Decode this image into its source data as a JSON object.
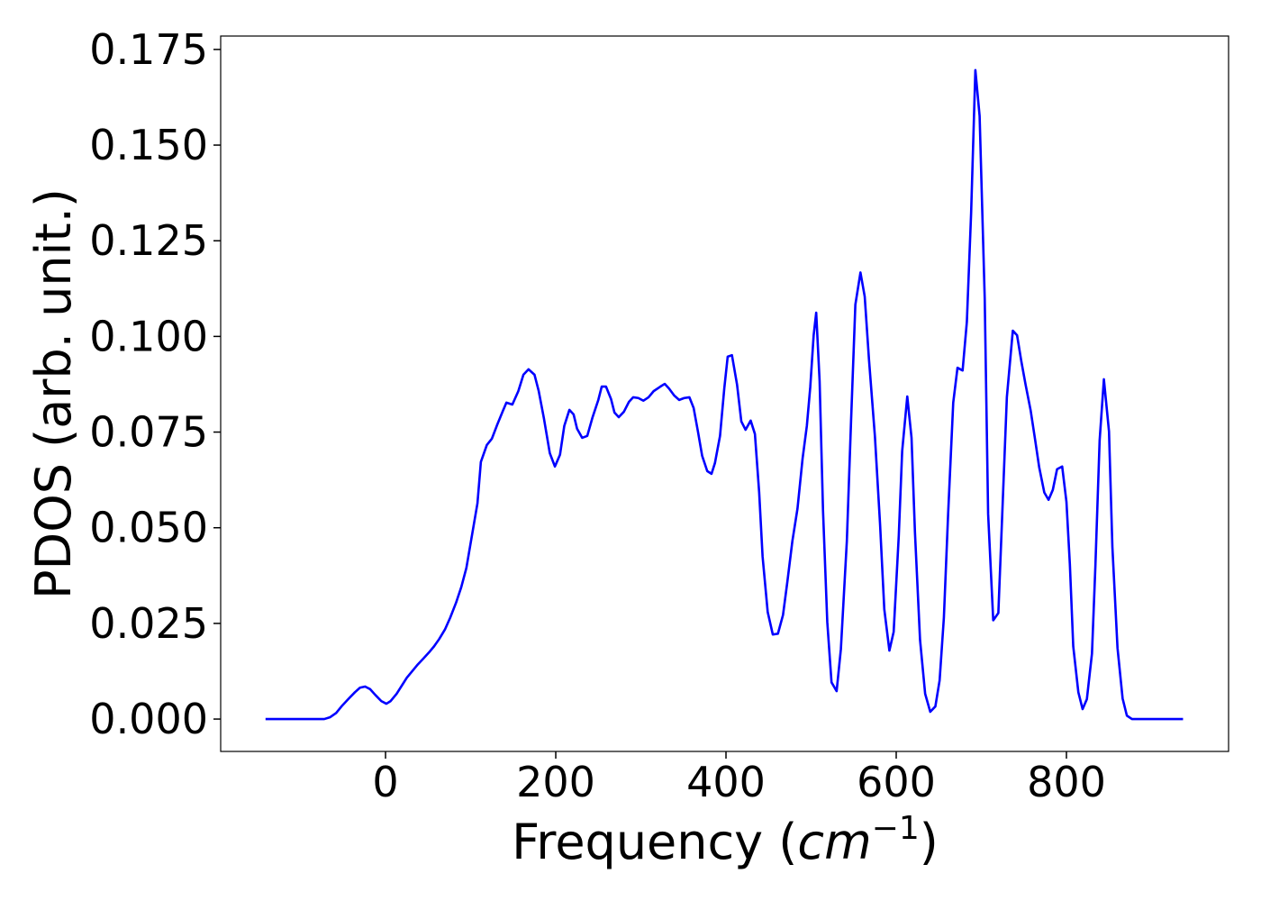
{
  "chart_data": {
    "type": "line",
    "xlabel": [
      "Frequency (",
      "cm",
      "−1",
      ")"
    ],
    "ylabel": "PDOS (arb. unit.)",
    "color": "#0000ff",
    "xlim": [
      -193.7,
      990.5
    ],
    "ylim": [
      -0.00846,
      0.1785
    ],
    "xticks": [
      0,
      200,
      400,
      600,
      800
    ],
    "yticks": [
      {
        "value": 0,
        "label": "0.000"
      },
      0.025,
      {
        "value": 0.05,
        "label": "0.050"
      },
      0.075,
      {
        "value": 0.1,
        "label": "0.100"
      },
      0.125,
      {
        "value": 0.15,
        "label": "0.150"
      },
      0.175
    ],
    "x": [
      -141,
      -72,
      -65,
      -58,
      -51,
      -43,
      -36,
      -30,
      -24,
      -18,
      -12,
      -5,
      1,
      6,
      13,
      19,
      25,
      32,
      38,
      44,
      51,
      57,
      63,
      70,
      76,
      83,
      89,
      95,
      102,
      108,
      112,
      119,
      125,
      131,
      138,
      142,
      149,
      156,
      162,
      168,
      175,
      180,
      186,
      193,
      199,
      205,
      210,
      216,
      221,
      225,
      231,
      237,
      243,
      250,
      254,
      259,
      265,
      269,
      274,
      280,
      286,
      291,
      297,
      303,
      309,
      315,
      323,
      328,
      333,
      339,
      345,
      351,
      357,
      362,
      367,
      372,
      378,
      383,
      387,
      393,
      398,
      402,
      407,
      413,
      418,
      423,
      429,
      434,
      439,
      443,
      449,
      455,
      461,
      467,
      472,
      478,
      484,
      490,
      495,
      499,
      503,
      506,
      510,
      514,
      519,
      524,
      530,
      535,
      542,
      547,
      552,
      558,
      563,
      568,
      575,
      581,
      586,
      592,
      597,
      603,
      607,
      613,
      618,
      622,
      628,
      634,
      640,
      646,
      651,
      656,
      661,
      667,
      672,
      678,
      683,
      688,
      693,
      698,
      704,
      708,
      714,
      720,
      725,
      730,
      737,
      742,
      747,
      752,
      758,
      763,
      768,
      774,
      779,
      784,
      789,
      795,
      800,
      804,
      808,
      814,
      819,
      824,
      830,
      834,
      839,
      844,
      850,
      854,
      860,
      866,
      871,
      877,
      937
    ],
    "values": [
      0,
      0,
      0.0005,
      0.0016,
      0.0035,
      0.0054,
      0.007,
      0.0082,
      0.0085,
      0.0078,
      0.0063,
      0.0047,
      0.004,
      0.0047,
      0.0066,
      0.0087,
      0.0108,
      0.0127,
      0.0143,
      0.0157,
      0.0174,
      0.019,
      0.0209,
      0.0235,
      0.0265,
      0.0305,
      0.0345,
      0.0395,
      0.0486,
      0.0564,
      0.0672,
      0.0716,
      0.0733,
      0.0768,
      0.0806,
      0.0827,
      0.0822,
      0.0857,
      0.09,
      0.0914,
      0.09,
      0.0857,
      0.0787,
      0.0695,
      0.066,
      0.0691,
      0.0766,
      0.0808,
      0.0796,
      0.0759,
      0.0735,
      0.074,
      0.0787,
      0.0834,
      0.0869,
      0.0869,
      0.0836,
      0.0801,
      0.0789,
      0.0803,
      0.0829,
      0.0841,
      0.0839,
      0.0832,
      0.0841,
      0.0857,
      0.0869,
      0.0876,
      0.0864,
      0.0846,
      0.0834,
      0.0839,
      0.0841,
      0.0813,
      0.0752,
      0.0688,
      0.0648,
      0.0641,
      0.0669,
      0.074,
      0.0864,
      0.0947,
      0.0951,
      0.0874,
      0.0778,
      0.0756,
      0.078,
      0.0745,
      0.0592,
      0.0425,
      0.028,
      0.0221,
      0.0223,
      0.0272,
      0.0357,
      0.0465,
      0.055,
      0.0681,
      0.0766,
      0.0867,
      0.1003,
      0.1062,
      0.0883,
      0.0545,
      0.0254,
      0.0096,
      0.0073,
      0.0183,
      0.0465,
      0.0782,
      0.1083,
      0.1167,
      0.1104,
      0.094,
      0.0738,
      0.051,
      0.0287,
      0.0179,
      0.0228,
      0.0479,
      0.07,
      0.0843,
      0.0735,
      0.0489,
      0.0207,
      0.0066,
      0.0019,
      0.0033,
      0.0101,
      0.0265,
      0.0536,
      0.0827,
      0.0918,
      0.0911,
      0.1038,
      0.1322,
      0.1696,
      0.1576,
      0.1099,
      0.0536,
      0.0258,
      0.0277,
      0.0559,
      0.0841,
      0.1015,
      0.1003,
      0.0935,
      0.0874,
      0.0806,
      0.0733,
      0.0658,
      0.0592,
      0.0573,
      0.0599,
      0.0653,
      0.066,
      0.0568,
      0.0406,
      0.019,
      0.007,
      0.0026,
      0.0052,
      0.0171,
      0.0399,
      0.0728,
      0.0888,
      0.0752,
      0.0449,
      0.0186,
      0.0054,
      0.0009,
      0,
      0
    ]
  }
}
